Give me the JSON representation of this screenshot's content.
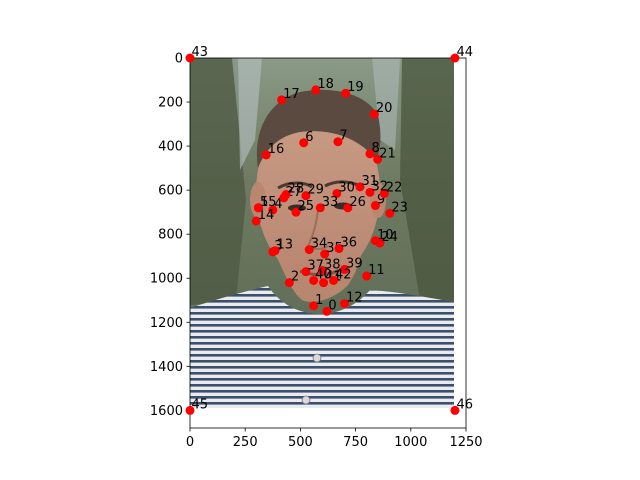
{
  "chart_data": {
    "type": "scatter",
    "title": "",
    "xlabel": "",
    "ylabel": "",
    "xlim": [
      0,
      1250
    ],
    "ylim": [
      1680,
      0
    ],
    "y_inverted": true,
    "grid": false,
    "background": "photograph of a young man with swept-up hair and a striped shirt, standing in front of pine trees",
    "image_extent": {
      "x": [
        0,
        1200
      ],
      "y": [
        1600,
        0
      ]
    },
    "marker_color": "#ff0000",
    "xticks": [
      0,
      250,
      500,
      750,
      1000,
      1250
    ],
    "yticks": [
      0,
      200,
      400,
      600,
      800,
      1000,
      1200,
      1400,
      1600
    ],
    "points": [
      {
        "label": "0",
        "x": 620,
        "y": 1150
      },
      {
        "label": "1",
        "x": 560,
        "y": 1125
      },
      {
        "label": "2",
        "x": 450,
        "y": 1020
      },
      {
        "label": "3",
        "x": 375,
        "y": 880
      },
      {
        "label": "4",
        "x": 375,
        "y": 690
      },
      {
        "label": "5",
        "x": 310,
        "y": 680
      },
      {
        "label": "6",
        "x": 515,
        "y": 385
      },
      {
        "label": "7",
        "x": 670,
        "y": 380
      },
      {
        "label": "8",
        "x": 815,
        "y": 435
      },
      {
        "label": "9",
        "x": 840,
        "y": 670
      },
      {
        "label": "10",
        "x": 840,
        "y": 830
      },
      {
        "label": "11",
        "x": 800,
        "y": 990
      },
      {
        "label": "12",
        "x": 700,
        "y": 1115
      },
      {
        "label": "13",
        "x": 385,
        "y": 875
      },
      {
        "label": "14",
        "x": 300,
        "y": 740
      },
      {
        "label": "15",
        "x": 310,
        "y": 680
      },
      {
        "label": "16",
        "x": 345,
        "y": 440
      },
      {
        "label": "17",
        "x": 415,
        "y": 190
      },
      {
        "label": "18",
        "x": 570,
        "y": 145
      },
      {
        "label": "19",
        "x": 705,
        "y": 160
      },
      {
        "label": "20",
        "x": 835,
        "y": 255
      },
      {
        "label": "21",
        "x": 850,
        "y": 460
      },
      {
        "label": "22",
        "x": 880,
        "y": 615
      },
      {
        "label": "23",
        "x": 905,
        "y": 705
      },
      {
        "label": "24",
        "x": 860,
        "y": 840
      },
      {
        "label": "25",
        "x": 480,
        "y": 700
      },
      {
        "label": "26",
        "x": 715,
        "y": 680
      },
      {
        "label": "27",
        "x": 425,
        "y": 635
      },
      {
        "label": "28",
        "x": 435,
        "y": 620
      },
      {
        "label": "29",
        "x": 525,
        "y": 625
      },
      {
        "label": "30",
        "x": 665,
        "y": 615
      },
      {
        "label": "31",
        "x": 770,
        "y": 585
      },
      {
        "label": "32",
        "x": 815,
        "y": 610
      },
      {
        "label": "33",
        "x": 590,
        "y": 680
      },
      {
        "label": "34",
        "x": 540,
        "y": 870
      },
      {
        "label": "35",
        "x": 610,
        "y": 890
      },
      {
        "label": "36",
        "x": 675,
        "y": 865
      },
      {
        "label": "37",
        "x": 525,
        "y": 970
      },
      {
        "label": "38",
        "x": 600,
        "y": 965
      },
      {
        "label": "39",
        "x": 700,
        "y": 960
      },
      {
        "label": "40",
        "x": 560,
        "y": 1010
      },
      {
        "label": "41",
        "x": 605,
        "y": 1020
      },
      {
        "label": "42",
        "x": 650,
        "y": 1010
      },
      {
        "label": "43",
        "x": 0,
        "y": 0
      },
      {
        "label": "44",
        "x": 1200,
        "y": 0
      },
      {
        "label": "45",
        "x": 0,
        "y": 1600
      },
      {
        "label": "46",
        "x": 1200,
        "y": 1600
      }
    ]
  }
}
